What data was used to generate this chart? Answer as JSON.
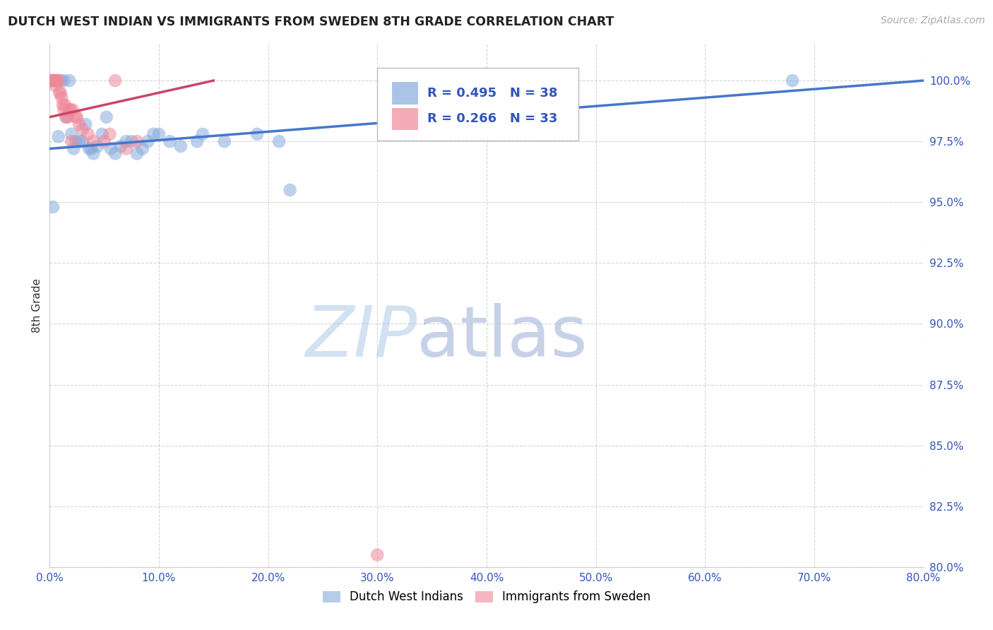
{
  "title": "DUTCH WEST INDIAN VS IMMIGRANTS FROM SWEDEN 8TH GRADE CORRELATION CHART",
  "source": "Source: ZipAtlas.com",
  "xlim": [
    0.0,
    80.0
  ],
  "ylim": [
    80.0,
    101.5
  ],
  "ylabel": "8th Grade",
  "legend_label1": "Dutch West Indians",
  "legend_label2": "Immigrants from Sweden",
  "R1": 0.495,
  "N1": 38,
  "R2": 0.266,
  "N2": 33,
  "color_blue": "#88AADD",
  "color_pink": "#EE8899",
  "color_line_blue": "#4477CC",
  "color_line_pink": "#CC4466",
  "bg_color": "#FFFFFF",
  "grid_color": "#BBBBBB",
  "watermark_zip": "ZIP",
  "watermark_atlas": "atlas",
  "blue_points_x": [
    0.3,
    0.6,
    1.0,
    1.3,
    1.8,
    2.0,
    2.4,
    2.7,
    3.0,
    3.3,
    3.6,
    4.0,
    4.4,
    4.8,
    5.2,
    5.6,
    6.0,
    6.5,
    7.0,
    7.5,
    8.0,
    8.5,
    9.0,
    9.5,
    10.0,
    11.0,
    12.0,
    13.5,
    14.0,
    16.0,
    19.0,
    21.0,
    0.8,
    1.5,
    2.2,
    3.8,
    22.0,
    68.0
  ],
  "blue_points_y": [
    94.8,
    100.0,
    100.0,
    100.0,
    100.0,
    97.8,
    97.5,
    97.5,
    97.5,
    98.2,
    97.2,
    97.0,
    97.3,
    97.8,
    98.5,
    97.2,
    97.0,
    97.3,
    97.5,
    97.5,
    97.0,
    97.2,
    97.5,
    97.8,
    97.8,
    97.5,
    97.3,
    97.5,
    97.8,
    97.5,
    97.8,
    97.5,
    97.7,
    98.5,
    97.2,
    97.2,
    95.5,
    100.0
  ],
  "pink_points_x": [
    0.1,
    0.2,
    0.3,
    0.4,
    0.5,
    0.6,
    0.7,
    0.8,
    0.9,
    1.0,
    1.1,
    1.2,
    1.3,
    1.4,
    1.5,
    1.7,
    1.9,
    2.1,
    2.4,
    2.7,
    3.0,
    3.5,
    4.0,
    5.0,
    6.0,
    7.0,
    8.0,
    0.5,
    1.8,
    2.5,
    5.5,
    30.0,
    2.0
  ],
  "pink_points_y": [
    100.0,
    100.0,
    100.0,
    100.0,
    100.0,
    100.0,
    100.0,
    100.0,
    99.5,
    99.5,
    99.3,
    99.0,
    98.8,
    99.0,
    98.5,
    98.5,
    98.8,
    98.8,
    98.5,
    98.2,
    98.0,
    97.8,
    97.5,
    97.5,
    100.0,
    97.2,
    97.5,
    99.8,
    98.8,
    98.5,
    97.8,
    80.5,
    97.5
  ],
  "blue_line_x0": 0.0,
  "blue_line_y0": 97.2,
  "blue_line_x1": 80.0,
  "blue_line_y1": 100.0,
  "pink_line_x0": 0.0,
  "pink_line_y0": 98.5,
  "pink_line_x1": 15.0,
  "pink_line_y1": 100.0
}
